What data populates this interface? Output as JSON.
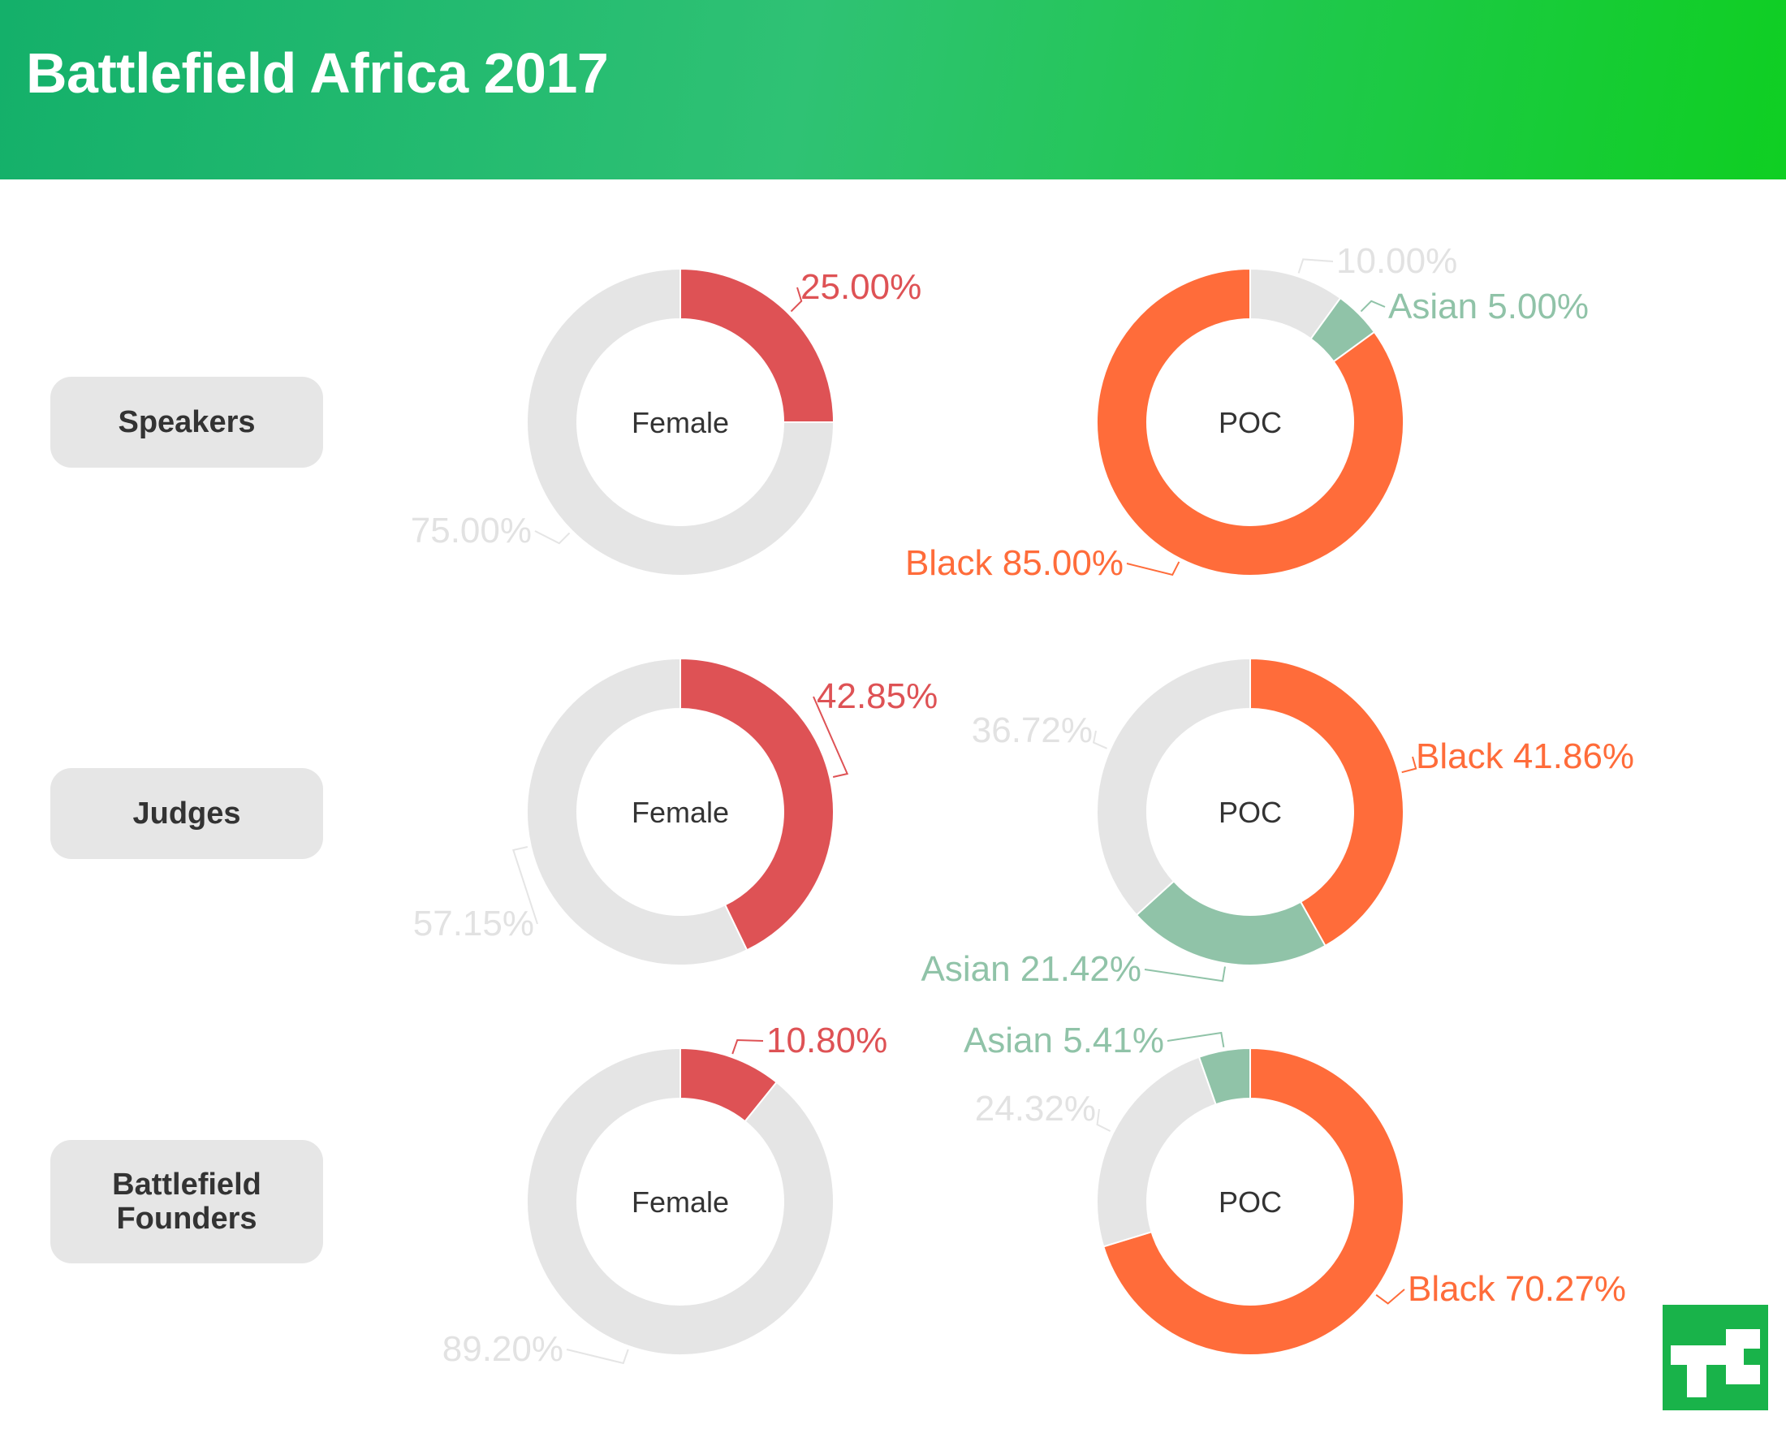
{
  "header": {
    "title": "Battlefield Africa 2017"
  },
  "colors": {
    "female": "#de5255",
    "black": "#ff6c3a",
    "asian": "#90c3a8",
    "rest": "#e5e5e5"
  },
  "rows": [
    {
      "label": "Speakers"
    },
    {
      "label": "Judges"
    },
    {
      "label": "Battlefield Founders"
    }
  ],
  "chart_data": [
    {
      "type": "pie",
      "variant": "donut",
      "row": "Speakers",
      "center_label": "Female",
      "slices": [
        {
          "name": "Female",
          "value": 25.0,
          "label": "25.00%",
          "color": "#de5255"
        },
        {
          "name": "Other",
          "value": 75.0,
          "label": "75.00%",
          "color": "#e5e5e5"
        }
      ]
    },
    {
      "type": "pie",
      "variant": "donut",
      "row": "Speakers",
      "center_label": "POC",
      "slices": [
        {
          "name": "Other",
          "value": 10.0,
          "label": "10.00%",
          "color": "#e5e5e5"
        },
        {
          "name": "Asian",
          "value": 5.0,
          "label": "Asian 5.00%",
          "color": "#90c3a8"
        },
        {
          "name": "Black",
          "value": 85.0,
          "label": "Black 85.00%",
          "color": "#ff6c3a"
        }
      ]
    },
    {
      "type": "pie",
      "variant": "donut",
      "row": "Judges",
      "center_label": "Female",
      "slices": [
        {
          "name": "Female",
          "value": 42.85,
          "label": "42.85%",
          "color": "#de5255"
        },
        {
          "name": "Other",
          "value": 57.15,
          "label": "57.15%",
          "color": "#e5e5e5"
        }
      ]
    },
    {
      "type": "pie",
      "variant": "donut",
      "row": "Judges",
      "center_label": "POC",
      "slices": [
        {
          "name": "Black",
          "value": 41.86,
          "label": "Black 41.86%",
          "color": "#ff6c3a"
        },
        {
          "name": "Asian",
          "value": 21.42,
          "label": "Asian 21.42%",
          "color": "#90c3a8"
        },
        {
          "name": "Other",
          "value": 36.72,
          "label": "36.72%",
          "color": "#e5e5e5"
        }
      ]
    },
    {
      "type": "pie",
      "variant": "donut",
      "row": "Battlefield Founders",
      "center_label": "Female",
      "slices": [
        {
          "name": "Female",
          "value": 10.8,
          "label": "10.80%",
          "color": "#de5255"
        },
        {
          "name": "Other",
          "value": 89.2,
          "label": "89.20%",
          "color": "#e5e5e5"
        }
      ]
    },
    {
      "type": "pie",
      "variant": "donut",
      "row": "Battlefield Founders",
      "center_label": "POC",
      "slices": [
        {
          "name": "Black",
          "value": 70.27,
          "label": "Black 70.27%",
          "color": "#ff6c3a"
        },
        {
          "name": "Other",
          "value": 24.32,
          "label": "24.32%",
          "color": "#e5e5e5"
        },
        {
          "name": "Asian",
          "value": 5.41,
          "label": "Asian 5.41%",
          "color": "#90c3a8"
        }
      ]
    }
  ]
}
